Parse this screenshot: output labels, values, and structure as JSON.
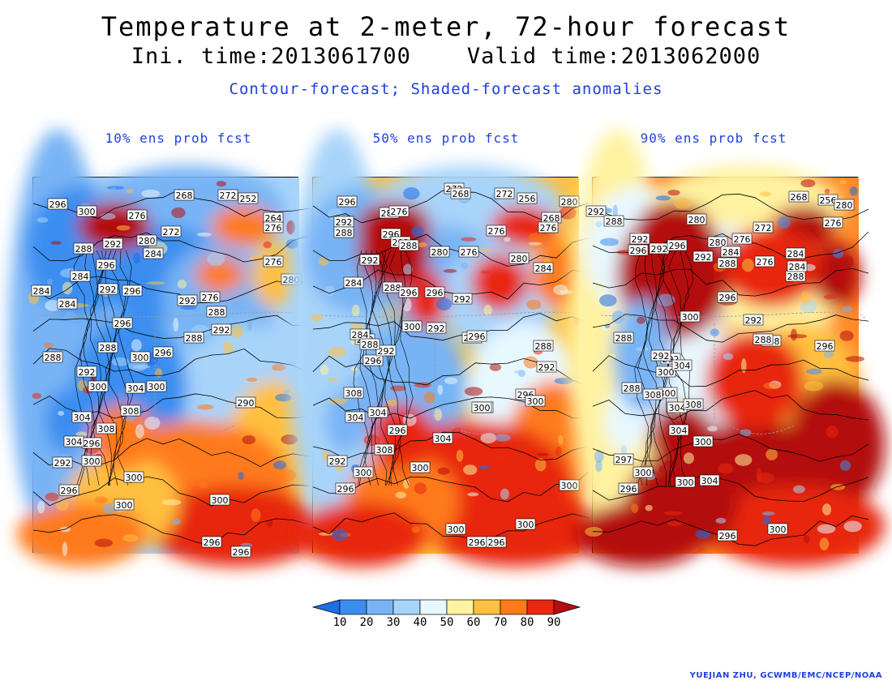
{
  "title": "Temperature at 2-meter, 72-hour forecast",
  "subtitle": "Ini. time:2013061700    Valid time:2013062000",
  "description": "Contour-forecast; Shaded-forecast anomalies",
  "credit": "YUEJIAN ZHU, GCWMB/EMC/NCEP/NOAA",
  "colorbar": {
    "ticks": [
      "10",
      "20",
      "30",
      "40",
      "50",
      "60",
      "70",
      "80",
      "90"
    ],
    "colors": [
      "#1e6ee6",
      "#3b8ef0",
      "#78b4f5",
      "#a8d4fa",
      "#e8f8ff",
      "#fff2a0",
      "#ffc040",
      "#ff7a1a",
      "#e82810",
      "#b40e0e"
    ]
  },
  "panels": [
    {
      "title": "10% ens prob fcst",
      "labels": [
        "296",
        "300",
        "288",
        "276",
        "292",
        "280",
        "272",
        "284",
        "268",
        "272",
        "252",
        "264",
        "276",
        "276",
        "280",
        "284",
        "296",
        "284",
        "292",
        "296",
        "292",
        "276",
        "288",
        "288",
        "292",
        "284",
        "296",
        "288",
        "300",
        "296",
        "304",
        "300",
        "288",
        "292",
        "300",
        "308",
        "304",
        "308",
        "296",
        "304",
        "292",
        "300",
        "296",
        "300",
        "300",
        "300",
        "296",
        "290",
        "296"
      ]
    },
    {
      "title": "50% ens prob fcst",
      "labels": [
        "296",
        "292",
        "288",
        "284",
        "276",
        "296",
        "292",
        "288",
        "272",
        "268",
        "272",
        "256",
        "280",
        "268",
        "276",
        "276",
        "280",
        "284",
        "292",
        "288",
        "296",
        "296",
        "292",
        "288",
        "280",
        "276",
        "284",
        "288",
        "300",
        "296",
        "292",
        "284",
        "288",
        "292",
        "296",
        "288",
        "292",
        "300",
        "308",
        "304",
        "304",
        "296",
        "300",
        "300",
        "304",
        "296",
        "308",
        "292",
        "300",
        "300",
        "300",
        "296",
        "300",
        "300",
        "296",
        "296"
      ]
    },
    {
      "title": "90% ens prob fcst",
      "labels": [
        "292",
        "288",
        "292",
        "296",
        "280",
        "292",
        "272",
        "276",
        "268",
        "256",
        "280",
        "276",
        "284",
        "296",
        "292",
        "288",
        "280",
        "284",
        "276",
        "288",
        "284",
        "292",
        "296",
        "288",
        "300",
        "292",
        "288",
        "288",
        "296",
        "288",
        "292",
        "300",
        "304",
        "300",
        "308",
        "304",
        "308",
        "304",
        "300",
        "297",
        "300",
        "296",
        "304",
        "300",
        "296",
        "300"
      ]
    }
  ]
}
